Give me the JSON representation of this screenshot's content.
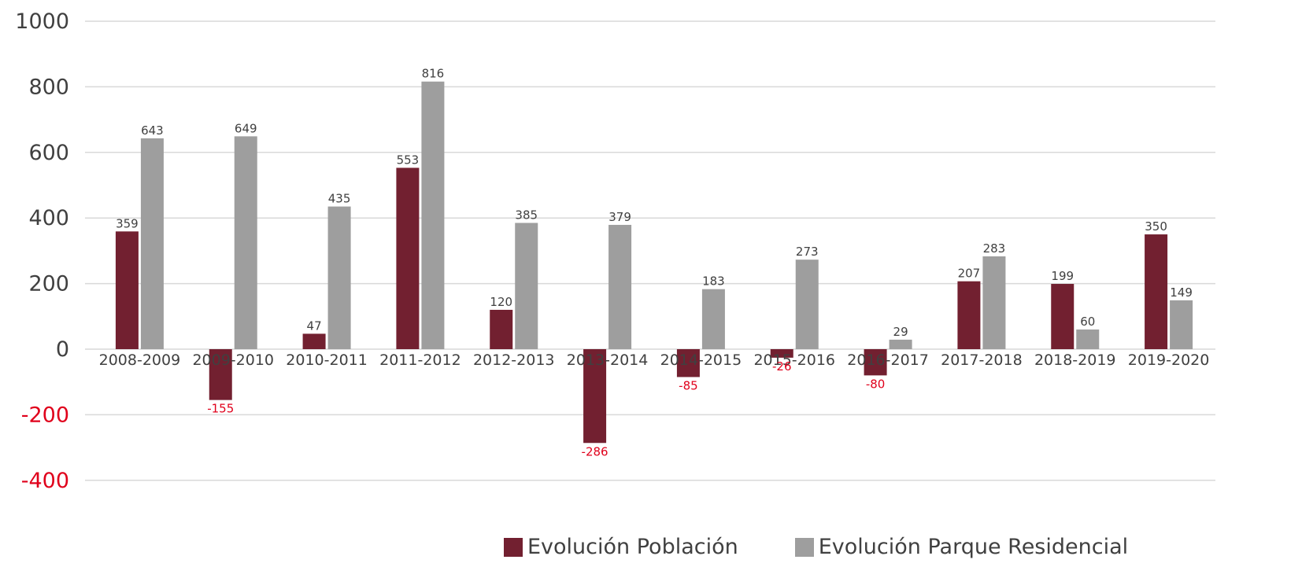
{
  "colors": {
    "poblacion": "#722030",
    "parque": "#9e9e9e",
    "negative_text": "#e0001b",
    "text": "#404040",
    "grid": "#d9d9d9"
  },
  "legend": {
    "poblacion": "Evolución Población",
    "parque": "Evolución Parque Residencial"
  },
  "chart_data": {
    "type": "bar",
    "categories": [
      "2008-2009",
      "2009-2010",
      "2010-2011",
      "2011-2012",
      "2012-2013",
      "2013-2014",
      "2014-2015",
      "2015-2016",
      "2016-2017",
      "2017-2018",
      "2018-2019",
      "2019-2020"
    ],
    "series": [
      {
        "name": "Evolución Población",
        "values": [
          359,
          -155,
          47,
          553,
          120,
          -286,
          -85,
          -26,
          -80,
          207,
          199,
          350
        ]
      },
      {
        "name": "Evolución Parque Residencial",
        "values": [
          643,
          649,
          435,
          816,
          385,
          379,
          183,
          273,
          29,
          283,
          60,
          149
        ]
      }
    ],
    "ylim": [
      -400,
      1000
    ],
    "yticks": [
      1000,
      800,
      600,
      400,
      200,
      0,
      -200,
      -400
    ],
    "grid": true,
    "legend_position": "bottom",
    "title": "",
    "xlabel": "",
    "ylabel": ""
  }
}
